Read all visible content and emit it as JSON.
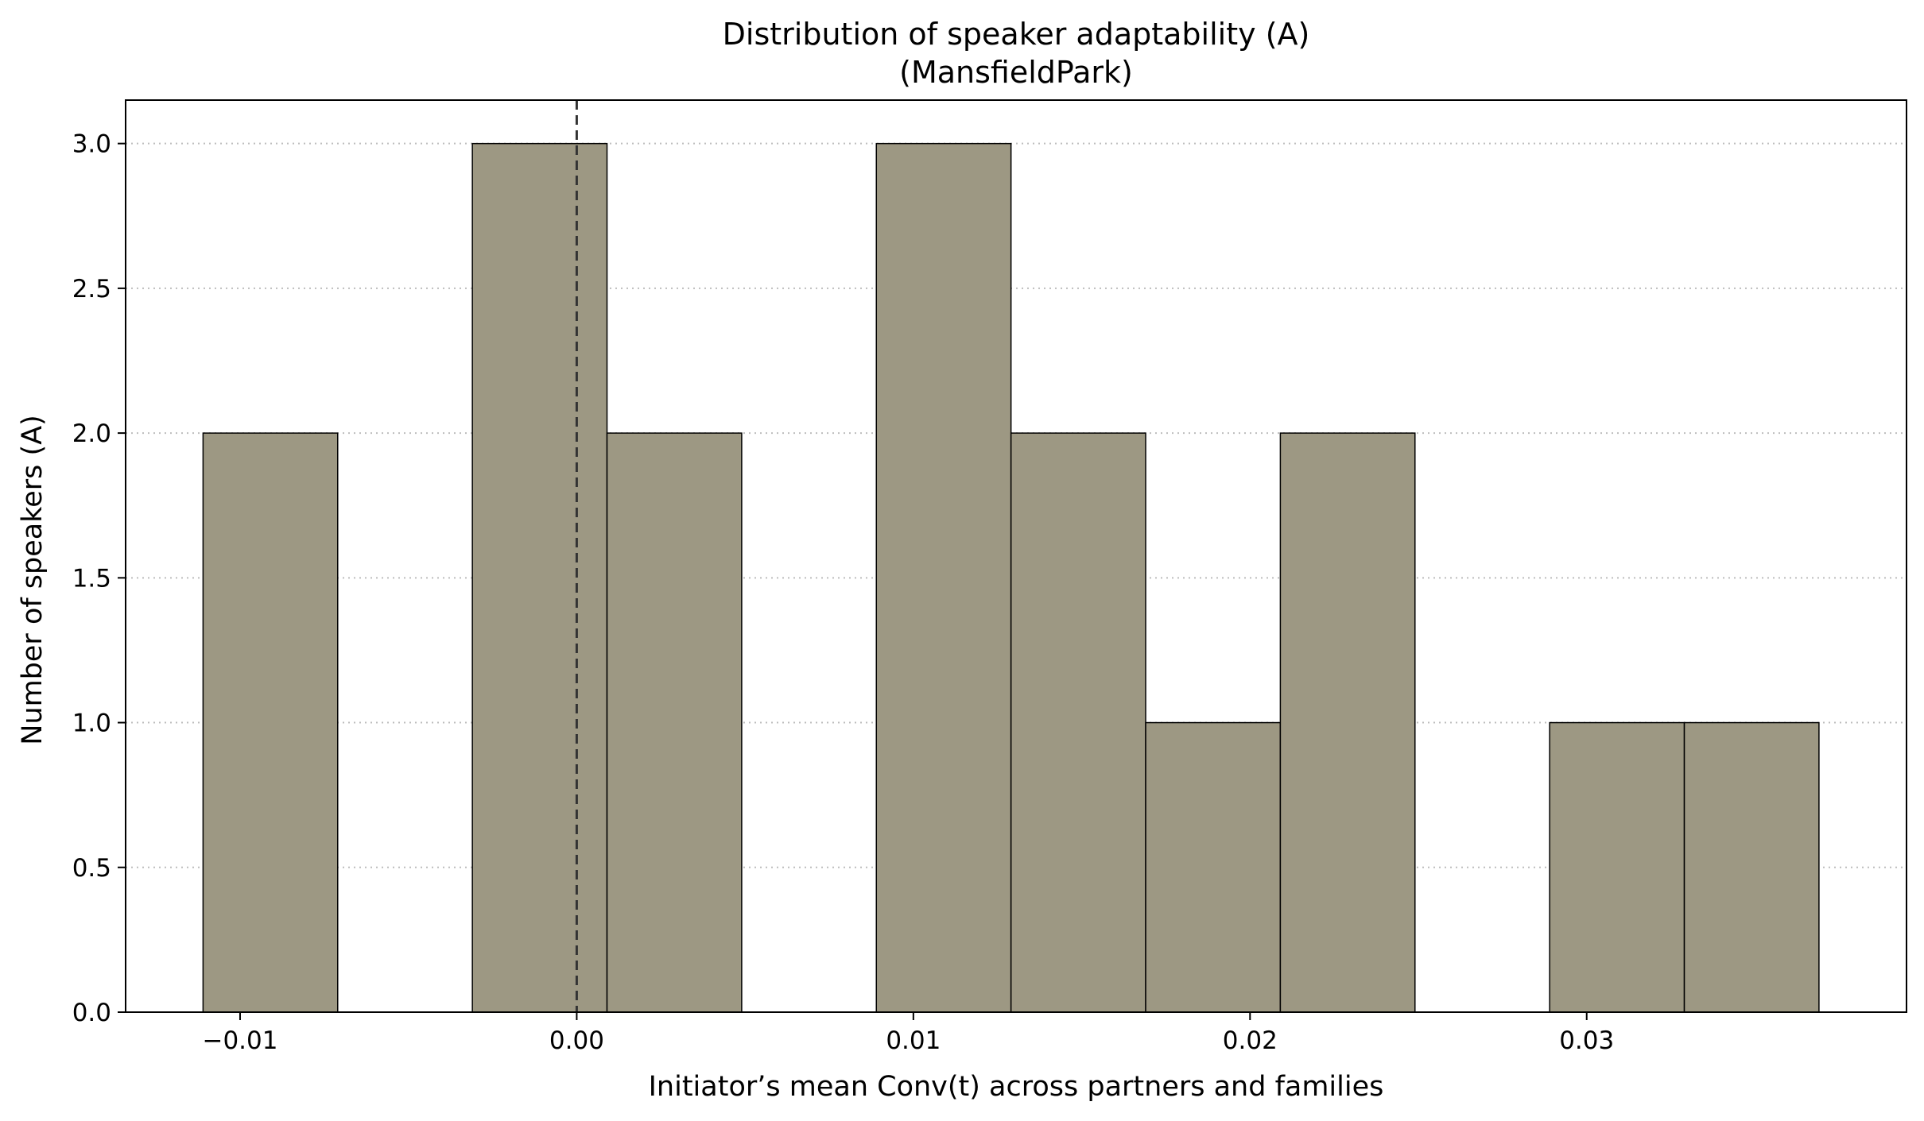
{
  "chart_data": {
    "type": "bar",
    "title": "Distribution of speaker adaptability (A)",
    "subtitle": "(MansfieldPark)",
    "xlabel": "Initiator’s mean Conv(t) across partners and families",
    "ylabel": "Number of speakers (A)",
    "xlim": [
      -0.0134,
      0.0395
    ],
    "ylim": [
      0,
      3.15
    ],
    "xticks": [
      -0.01,
      0.0,
      0.01,
      0.02,
      0.03
    ],
    "xtick_labels": [
      "−0.01",
      "0.00",
      "0.01",
      "0.02",
      "0.03"
    ],
    "yticks": [
      0.0,
      0.5,
      1.0,
      1.5,
      2.0,
      2.5,
      3.0
    ],
    "ytick_labels": [
      "0.0",
      "0.5",
      "1.0",
      "1.5",
      "2.0",
      "2.5",
      "3.0"
    ],
    "grid": "y-dotted",
    "reference_line_x": 0.0,
    "bar_color": "#9d9883",
    "bins": [
      {
        "x0": -0.0111,
        "x1": -0.0071,
        "count": 2
      },
      {
        "x0": -0.0031,
        "x1": 0.0009,
        "count": 3
      },
      {
        "x0": 0.0009,
        "x1": 0.0049,
        "count": 2
      },
      {
        "x0": 0.0089,
        "x1": 0.0129,
        "count": 3
      },
      {
        "x0": 0.0129,
        "x1": 0.0169,
        "count": 2
      },
      {
        "x0": 0.0169,
        "x1": 0.0209,
        "count": 1
      },
      {
        "x0": 0.0209,
        "x1": 0.0249,
        "count": 2
      },
      {
        "x0": 0.0289,
        "x1": 0.0329,
        "count": 1
      },
      {
        "x0": 0.0329,
        "x1": 0.0369,
        "count": 1
      }
    ]
  }
}
